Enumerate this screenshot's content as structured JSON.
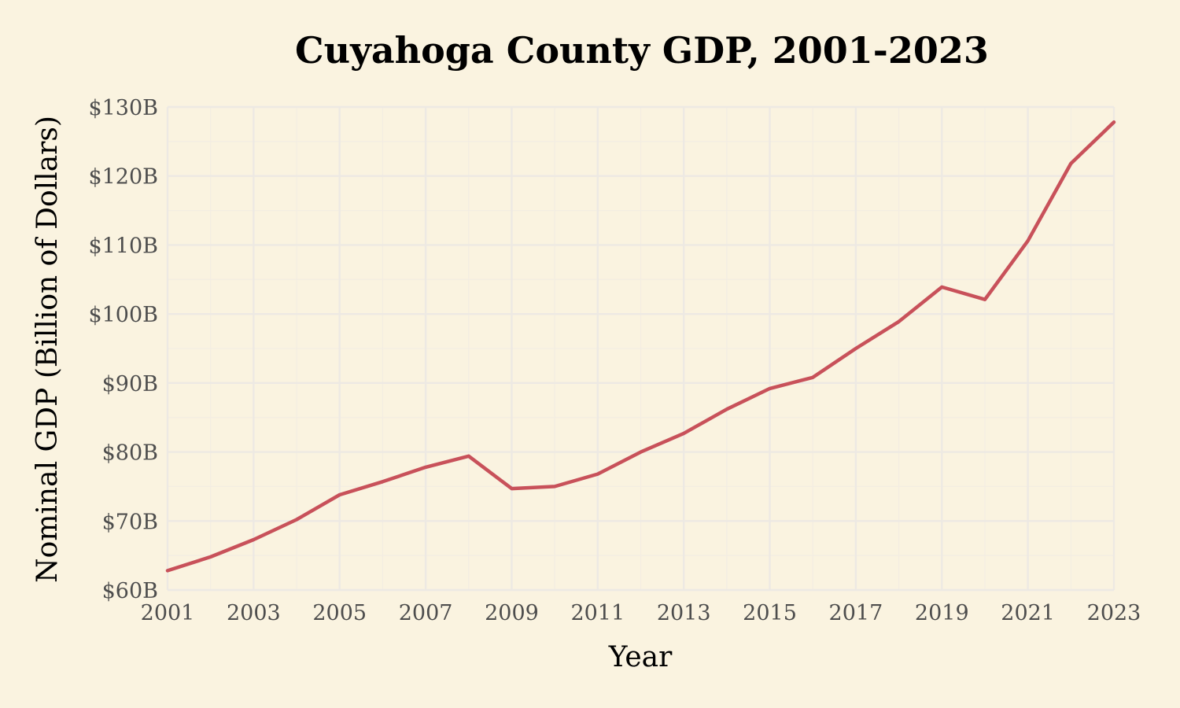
{
  "chart_data": {
    "type": "line",
    "title": "Cuyahoga County GDP, 2001-2023",
    "xlabel": "Year",
    "ylabel": "Nominal GDP (Billion of Dollars)",
    "xlim": [
      2001,
      2023
    ],
    "ylim": [
      60,
      130
    ],
    "x_ticks": [
      2001,
      2003,
      2005,
      2007,
      2009,
      2011,
      2013,
      2015,
      2017,
      2019,
      2021,
      2023
    ],
    "x_tick_labels": [
      "2001",
      "2003",
      "2005",
      "2007",
      "2009",
      "2011",
      "2013",
      "2015",
      "2017",
      "2019",
      "2021",
      "2023"
    ],
    "y_ticks": [
      60,
      70,
      80,
      90,
      100,
      110,
      120,
      130
    ],
    "y_tick_labels": [
      "$60B",
      "$70B",
      "$80B",
      "$90B",
      "$100B",
      "$110B",
      "$120B",
      "$130B"
    ],
    "grid": true,
    "legend": "none",
    "series": [
      {
        "color": "#c8515a",
        "x": [
          2001,
          2002,
          2003,
          2004,
          2005,
          2006,
          2007,
          2008,
          2009,
          2010,
          2011,
          2012,
          2013,
          2014,
          2015,
          2016,
          2017,
          2018,
          2019,
          2020,
          2021,
          2022,
          2023
        ],
        "values": [
          62.8,
          64.8,
          67.3,
          70.2,
          73.8,
          75.7,
          77.8,
          79.4,
          74.7,
          75.0,
          76.8,
          80.0,
          82.7,
          86.2,
          89.2,
          90.8,
          95.0,
          98.9,
          103.9,
          102.1,
          110.6,
          121.8,
          127.8
        ]
      }
    ]
  }
}
